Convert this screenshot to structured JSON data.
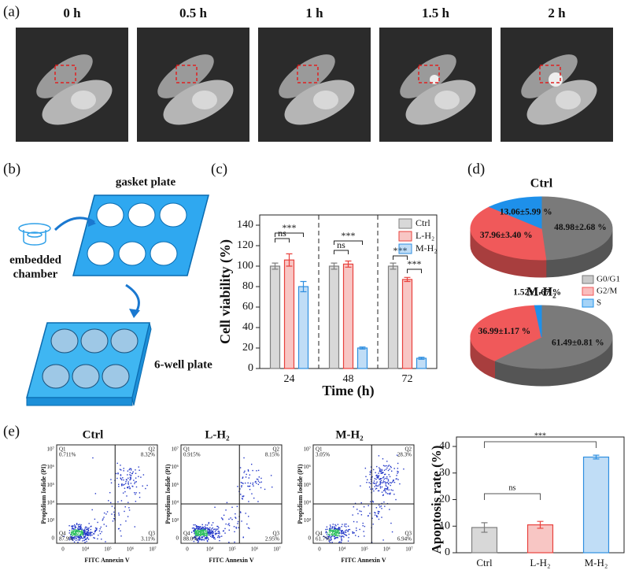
{
  "panel_labels": [
    "(a)",
    "(b)",
    "(c)",
    "(d)",
    "(e)"
  ],
  "timelapse": {
    "times": [
      "0 h",
      "0.5 h",
      "1 h",
      "1.5 h",
      "2 h"
    ]
  },
  "diagram": {
    "gasket": "gasket plate",
    "chamber": [
      "embedded",
      "chamber"
    ],
    "well": "6-well plate"
  },
  "chart_data": [
    {
      "type": "bar",
      "x_label": "Time (h)",
      "y_label": "Cell viability (%)",
      "categories": [
        "24",
        "48",
        "72"
      ],
      "series": [
        {
          "name": "Ctrl",
          "color": "#7f7f7f",
          "values": [
            100,
            100,
            100
          ],
          "errors": [
            3,
            3,
            3
          ]
        },
        {
          "name": "L-H₂",
          "color": "#e8413c",
          "values": [
            106,
            102,
            87
          ],
          "errors": [
            6,
            3,
            2
          ]
        },
        {
          "name": "M-H₂",
          "color": "#2f8fe0",
          "values": [
            80,
            20,
            10
          ],
          "errors": [
            5,
            1,
            1
          ]
        }
      ],
      "ylim": [
        0,
        150
      ],
      "yticks": [
        0,
        20,
        40,
        60,
        80,
        100,
        120,
        140
      ],
      "legend": "upper right",
      "annotations": [
        "ns",
        "***",
        "ns",
        "***",
        "***",
        "***"
      ]
    },
    {
      "type": "pie",
      "title": "Ctrl",
      "categories": [
        "G0/G1",
        "G2/M",
        "S"
      ],
      "values": [
        48.98,
        37.96,
        13.06
      ],
      "value_labels": [
        "48.98±2.68 %",
        "37.96±3.40 %",
        "13.06±5.99 %"
      ],
      "colors": [
        "#7a7a7a",
        "#f0595a",
        "#1e90ea"
      ],
      "legend": "lower right"
    },
    {
      "type": "pie",
      "title": "M-H₂",
      "values": [
        61.49,
        36.99,
        1.52
      ],
      "value_labels": [
        "61.49±0.81 %",
        "36.99±1.17 %",
        "1.52±1.67 %"
      ],
      "colors": [
        "#7a7a7a",
        "#f0595a",
        "#1e90ea"
      ]
    },
    {
      "type": "bar",
      "y_label": "Apoptosis rate (%)",
      "categories": [
        "Ctrl",
        "L-H₂",
        "M-H₂"
      ],
      "values": [
        9.5,
        10.5,
        36
      ],
      "errors": [
        1.8,
        1.3,
        0.7
      ],
      "colors": [
        "#7f7f7f",
        "#e8413c",
        "#2f8fe0"
      ],
      "ylim": [
        0,
        40
      ],
      "yticks": [
        0,
        10,
        20,
        30,
        40
      ],
      "annotations": [
        "ns",
        "***"
      ]
    }
  ],
  "flow": {
    "x_label": "FITC Annexin V",
    "y_label": "Propidium Iodide (PI)",
    "xticks": [
      "0",
      "10⁴",
      "10⁵",
      "10⁶",
      "10⁷"
    ],
    "yticks": [
      "0",
      "10³",
      "10⁴",
      "10⁵",
      "10⁶",
      "10⁷"
    ],
    "plots": [
      {
        "title": "Ctrl",
        "quadrants": [
          [
            "Q1",
            "0.711%"
          ],
          [
            "Q2",
            "8.32%"
          ],
          [
            "Q3",
            "3.11%"
          ],
          [
            "Q4",
            "87.9%"
          ]
        ]
      },
      {
        "title": "L-H₂",
        "quadrants": [
          [
            "Q1",
            "0.915%"
          ],
          [
            "Q2",
            "8.15%"
          ],
          [
            "Q3",
            "2.95%"
          ],
          [
            "Q4",
            "88.0%"
          ]
        ]
      },
      {
        "title": "M-H₂",
        "quadrants": [
          [
            "Q1",
            "3.05%"
          ],
          [
            "Q2",
            "28.3%"
          ],
          [
            "Q3",
            "6.94%"
          ],
          [
            "Q4",
            "61.7%"
          ]
        ]
      }
    ]
  }
}
